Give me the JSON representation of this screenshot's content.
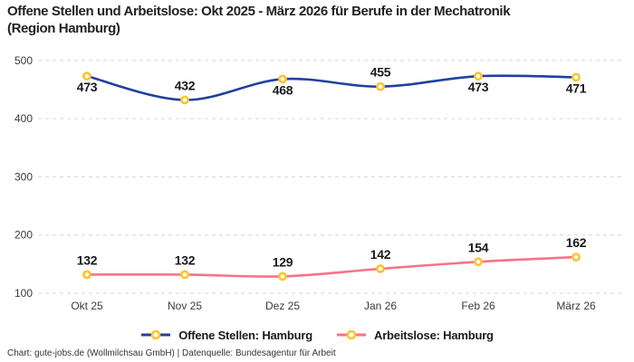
{
  "title": "Offene Stellen und Arbeitslose: Okt 2025 - März 2026 für Berufe in der Mechatronik\n(Region Hamburg)",
  "footer": "Chart: gute-jobs.de (Wollmilchsau GmbH) | Datenquelle: Bundesagentur für Arbeit",
  "colors": {
    "open_positions": "#21409f",
    "unemployed": "#f97287",
    "marker_ring": "#fcc42c",
    "grid": "#d7d7d7",
    "axis_text": "#3b3b3b",
    "label_text": "#1a1a1a"
  },
  "chart_data": {
    "type": "line",
    "title": "Offene Stellen und Arbeitslose: Okt 2025 - März 2026 für Berufe in der Mechatronik\n(Region Hamburg)",
    "categories": [
      "Okt 25",
      "Nov 25",
      "Dez 25",
      "Jan 26",
      "Feb 26",
      "März 26"
    ],
    "series": [
      {
        "name": "Offene Stellen: Hamburg",
        "values": [
          473,
          432,
          468,
          455,
          473,
          471
        ],
        "color_key": "open_positions",
        "label_side": [
          "below",
          "above",
          "below",
          "above",
          "below",
          "below"
        ]
      },
      {
        "name": "Arbeitslose: Hamburg",
        "values": [
          132,
          132,
          129,
          142,
          154,
          162
        ],
        "color_key": "unemployed",
        "label_side": [
          "above",
          "above",
          "above",
          "above",
          "above",
          "above"
        ]
      }
    ],
    "y_ticks": [
      100,
      200,
      300,
      400,
      500
    ],
    "ylim": [
      100,
      500
    ],
    "grid": "dashed-horizontal",
    "legend_position": "bottom",
    "marker": "ring"
  }
}
